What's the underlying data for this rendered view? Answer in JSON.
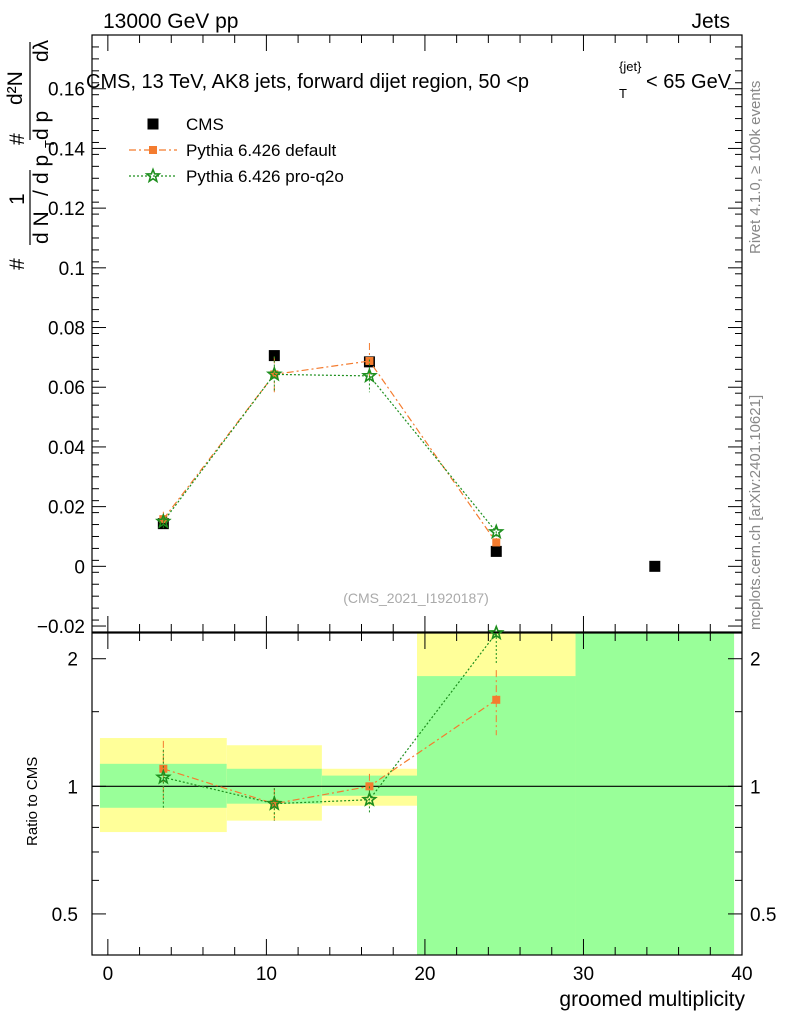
{
  "header": {
    "left": "13000 GeV pp",
    "right": "Jets"
  },
  "side_labels": {
    "rivet": "Rivet 4.1.0, ≥ 100k events",
    "mcplots": "mcplots.cern.ch [arXiv:2401.10621]"
  },
  "chart_data": [
    {
      "type": "scatter",
      "title": "CMS, 13 TeV, AK8 jets, forward dijet region, 50 <p_T^{jet}< 65 GeV",
      "title_parts": {
        "main": "CMS, 13 TeV, AK8 jets, forward dijet region, 50 <p",
        "sup": "{jet}",
        "sub": "T",
        "end": "< 65 GeV"
      },
      "ylabel": "1/dN/dp_T # d^2N/dp_T dλ",
      "ylabel_parts": {
        "hash": "#",
        "one": "1",
        "dn": "d N",
        "dp": "d p",
        "sub": "T",
        "hash2": "#",
        "d2n": "d²N",
        "dp2": "d p",
        "dl": "dλ"
      },
      "xlabel": "",
      "watermark": "(CMS_2021_I1920187)",
      "xlim": [
        -1,
        40
      ],
      "ylim": [
        -0.022,
        0.178
      ],
      "yticks": [
        -0.02,
        0,
        0.02,
        0.04,
        0.06,
        0.08,
        0.1,
        0.12,
        0.14,
        0.16
      ],
      "ytick_labels": [
        "−0.02",
        "0",
        "0.02",
        "0.04",
        "0.06",
        "0.08",
        "0.1",
        "0.12",
        "0.14",
        "0.16"
      ],
      "legend_position": "top-left",
      "series": [
        {
          "name": "CMS",
          "color": "#000000",
          "marker": "square",
          "x": [
            3.5,
            10.5,
            16.5,
            24.5,
            34.5
          ],
          "y": [
            0.0143,
            0.0706,
            0.0685,
            0.005,
            0.0
          ]
        },
        {
          "name": "Pythia 6.426 default",
          "color": "#f47c2f",
          "marker": "square",
          "line": "dashdot",
          "x": [
            3.5,
            10.5,
            16.5,
            24.5
          ],
          "y": [
            0.0158,
            0.0643,
            0.0688,
            0.008
          ],
          "yerr": [
            0.0025,
            0.006,
            0.006,
            0.0015
          ]
        },
        {
          "name": "Pythia 6.426 pro-q2o",
          "color": "#1e8f1e",
          "marker": "star",
          "line": "dotted",
          "x": [
            3.5,
            10.5,
            16.5,
            24.5
          ],
          "y": [
            0.015,
            0.0643,
            0.0638,
            0.0115
          ],
          "yerr": [
            0.0025,
            0.006,
            0.0055,
            0.0015
          ]
        }
      ]
    },
    {
      "type": "scatter",
      "title": "",
      "ylabel": "Ratio to CMS",
      "xlabel": "groomed multiplicity",
      "xlim": [
        -1,
        40
      ],
      "ylim": [
        0.4,
        2.3
      ],
      "yscale": "log",
      "yticks": [
        0.5,
        1,
        2
      ],
      "ytick_labels": [
        "0.5",
        "1",
        "2"
      ],
      "xticks": [
        0,
        10,
        20,
        30,
        40
      ],
      "xtick_labels": [
        "0",
        "10",
        "20",
        "30",
        "40"
      ],
      "reference_line": 1,
      "bands": [
        {
          "x0": -0.5,
          "x1": 7.5,
          "yellow": [
            0.78,
            1.3
          ],
          "green": [
            0.89,
            1.13
          ]
        },
        {
          "x0": 7.5,
          "x1": 13.5,
          "yellow": [
            0.83,
            1.25
          ],
          "green": [
            0.91,
            1.1
          ]
        },
        {
          "x0": 13.5,
          "x1": 19.5,
          "yellow": [
            0.9,
            1.1
          ],
          "green": [
            0.95,
            1.06
          ]
        },
        {
          "x0": 19.5,
          "x1": 29.5,
          "yellow": [
            0.4,
            2.3
          ],
          "green": [
            0.4,
            1.82
          ]
        },
        {
          "x0": 29.5,
          "x1": 39.5,
          "yellow": [
            0.4,
            2.3
          ],
          "green": [
            0.4,
            2.3
          ]
        }
      ],
      "series": [
        {
          "name": "Pythia 6.426 default",
          "color": "#f47c2f",
          "marker": "square",
          "line": "dashdot",
          "x": [
            3.5,
            10.5,
            16.5,
            24.5
          ],
          "y": [
            1.1,
            0.91,
            1.0,
            1.6
          ],
          "yerr": [
            0.18,
            0.08,
            0.07,
            0.28
          ]
        },
        {
          "name": "Pythia 6.426 pro-q2o",
          "color": "#1e8f1e",
          "marker": "star",
          "line": "dotted",
          "x": [
            3.5,
            10.5,
            16.5,
            24.5
          ],
          "y": [
            1.05,
            0.91,
            0.93,
            2.3
          ],
          "yerr": [
            0.17,
            0.08,
            0.07,
            0.35
          ]
        }
      ]
    }
  ]
}
